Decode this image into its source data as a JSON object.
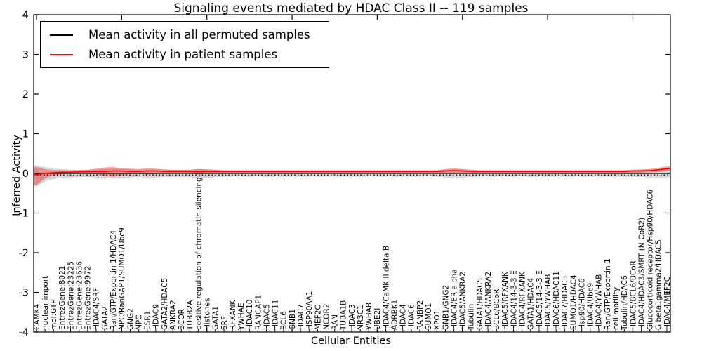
{
  "chart_data": {
    "type": "line",
    "title": "Signaling events mediated by HDAC Class II -- 119 samples",
    "xlabel": "Cellular Entities",
    "ylabel": "Inferred Activity",
    "ylim": [
      -4,
      4
    ],
    "yticks": [
      -4,
      -3,
      -2,
      -1,
      0,
      1,
      2,
      3,
      4
    ],
    "grid": false,
    "legend_position": "upper left",
    "zero_line_style": "dotted",
    "series": [
      {
        "name": "Mean activity in all permuted samples",
        "color": "#000000",
        "band_color": "rgba(120,120,120,0.30)"
      },
      {
        "name": "Mean activity in patient samples",
        "color": "#ff0000",
        "band_color": "rgba(255,0,0,0.35)"
      }
    ],
    "categories": [
      "CAMK4",
      "nuclear import",
      "mol:GTP",
      "EntrezGene:8021",
      "EntrezGene:23225",
      "EntrezGene:23636",
      "EntrezGene:9972",
      "HDAC4/SRF",
      "GATA2",
      "Ran/GTP/Exportin 1/HDAC4",
      "NPC/RanGAP1/SUMO1/Ubc9",
      "GNG2",
      "NPC",
      "ESR1",
      "HDAC9",
      "GATA2/HDAC5",
      "ANKRA2",
      "BCOR",
      "TUBB2A",
      "positive regulation of chromatin silencing",
      "Histones",
      "GATA1",
      "SRF",
      "RFXANK",
      "YWHAE",
      "HDAC10",
      "RANGAP1",
      "HDAC5",
      "HDAC11",
      "BCL6",
      "GNB1",
      "HDAC7",
      "HSP90AA1",
      "MEF2C",
      "NCOR2",
      "RAN",
      "TUBA1B",
      "HDAC3",
      "NR3C1",
      "YWHAB",
      "UBE2I",
      "HDAC4/CaMK II delta B",
      "ADRBK1",
      "HDAC4",
      "HDAC6",
      "RANBP2",
      "SUMO1",
      "XPO1",
      "GNB1/GNG2",
      "HDAC4/ER alpha",
      "HDAC5/ANKRA2",
      "Tubulin",
      "GATA1/HDAC5",
      "HDAC4/ANKRA2",
      "BCL6/BCoR",
      "HDAC5/RFXANK",
      "HDAC4/14-3-3 E",
      "HDAC4/RFXANK",
      "GATA1/HDAC4",
      "HDAC5/14-3-3 E",
      "HDAC5/YWHAB",
      "HDAC6/HDAC11",
      "HDAC7/HDAC3",
      "SUMO1/HDAC4",
      "Hsp90/HDAC6",
      "HDAC4/Ubc9",
      "HDAC4/YWHAB",
      "Ran/GTP/Exportin 1",
      "cell motility",
      "Tubulin/HDAC6",
      "HDAC5/BCL6/BCoR",
      "HDAC4/HDAC3/SMRT (N-CoR2)",
      "Glucocorticoid receptor/Hsp90/HDAC6",
      "G beta1gamma2/HDAC5",
      "HDAC4/MEF2C"
    ],
    "patient_mean": [
      -0.03,
      0.0,
      0.02,
      0.03,
      0.03,
      0.04,
      0.04,
      0.05,
      0.05,
      0.06,
      0.06,
      0.05,
      0.05,
      0.06,
      0.06,
      0.05,
      0.05,
      0.05,
      0.05,
      0.04,
      0.05,
      0.05,
      0.05,
      0.05,
      0.05,
      0.05,
      0.05,
      0.05,
      0.05,
      0.05,
      0.05,
      0.05,
      0.05,
      0.05,
      0.05,
      0.05,
      0.05,
      0.05,
      0.05,
      0.05,
      0.05,
      0.05,
      0.05,
      0.05,
      0.05,
      0.05,
      0.05,
      0.05,
      0.06,
      0.07,
      0.06,
      0.05,
      0.05,
      0.05,
      0.05,
      0.05,
      0.05,
      0.05,
      0.05,
      0.05,
      0.05,
      0.05,
      0.05,
      0.05,
      0.05,
      0.05,
      0.05,
      0.05,
      0.05,
      0.05,
      0.06,
      0.06,
      0.07,
      0.09,
      0.12
    ],
    "patient_upper": [
      0.16,
      0.1,
      0.08,
      0.08,
      0.08,
      0.08,
      0.09,
      0.12,
      0.15,
      0.16,
      0.13,
      0.12,
      0.11,
      0.13,
      0.12,
      0.1,
      0.09,
      0.09,
      0.09,
      0.11,
      0.1,
      0.09,
      0.08,
      0.08,
      0.08,
      0.08,
      0.08,
      0.08,
      0.08,
      0.08,
      0.08,
      0.08,
      0.08,
      0.08,
      0.08,
      0.08,
      0.08,
      0.08,
      0.08,
      0.08,
      0.08,
      0.08,
      0.08,
      0.08,
      0.08,
      0.08,
      0.08,
      0.08,
      0.11,
      0.13,
      0.11,
      0.09,
      0.08,
      0.08,
      0.08,
      0.08,
      0.08,
      0.08,
      0.08,
      0.08,
      0.08,
      0.08,
      0.08,
      0.08,
      0.08,
      0.08,
      0.08,
      0.08,
      0.08,
      0.08,
      0.09,
      0.1,
      0.11,
      0.14,
      0.18
    ],
    "patient_lower": [
      -0.3,
      -0.12,
      -0.05,
      -0.02,
      -0.01,
      -0.01,
      -0.01,
      -0.02,
      -0.06,
      -0.08,
      -0.05,
      -0.02,
      -0.01,
      -0.03,
      -0.02,
      0.0,
      0.0,
      0.01,
      0.01,
      -0.03,
      0.0,
      0.01,
      0.02,
      0.02,
      0.02,
      0.02,
      0.02,
      0.02,
      0.02,
      0.02,
      0.02,
      0.02,
      0.02,
      0.02,
      0.02,
      0.02,
      0.02,
      0.02,
      0.02,
      0.02,
      0.02,
      0.02,
      0.02,
      0.02,
      0.02,
      0.02,
      0.02,
      0.02,
      0.0,
      -0.01,
      0.0,
      0.01,
      0.02,
      0.02,
      0.02,
      0.02,
      0.02,
      0.02,
      0.02,
      0.02,
      0.02,
      0.02,
      0.02,
      0.02,
      0.02,
      0.02,
      0.02,
      0.02,
      0.02,
      0.02,
      0.02,
      0.02,
      0.03,
      0.04,
      0.06
    ],
    "permuted_mean": [
      0,
      0,
      0,
      0,
      0,
      0,
      0,
      0,
      0,
      0,
      0,
      0,
      0,
      0,
      0,
      0,
      0,
      0,
      0,
      0,
      0,
      0,
      0,
      0,
      0,
      0,
      0,
      0,
      0,
      0,
      0,
      0,
      0,
      0,
      0,
      0,
      0,
      0,
      0,
      0,
      0,
      0,
      0,
      0,
      0,
      0,
      0,
      0,
      0,
      0,
      0,
      0,
      0,
      0,
      0,
      0,
      0,
      0,
      0,
      0,
      0,
      0,
      0,
      0,
      0,
      0,
      0,
      0,
      0,
      0,
      0,
      0,
      0,
      0,
      0
    ],
    "permuted_upper": [
      0.2,
      0.16,
      0.12,
      0.1,
      0.09,
      0.09,
      0.09,
      0.1,
      0.11,
      0.12,
      0.11,
      0.1,
      0.09,
      0.1,
      0.1,
      0.09,
      0.09,
      0.09,
      0.09,
      0.11,
      0.1,
      0.09,
      0.08,
      0.08,
      0.08,
      0.08,
      0.08,
      0.08,
      0.08,
      0.08,
      0.08,
      0.08,
      0.08,
      0.08,
      0.08,
      0.08,
      0.08,
      0.08,
      0.08,
      0.08,
      0.08,
      0.08,
      0.08,
      0.08,
      0.08,
      0.08,
      0.08,
      0.08,
      0.1,
      0.1,
      0.1,
      0.09,
      0.08,
      0.08,
      0.08,
      0.08,
      0.08,
      0.08,
      0.08,
      0.08,
      0.08,
      0.08,
      0.08,
      0.08,
      0.08,
      0.08,
      0.08,
      0.08,
      0.08,
      0.08,
      0.09,
      0.09,
      0.1,
      0.1,
      0.1
    ],
    "permuted_lower": [
      -0.33,
      -0.2,
      -0.14,
      -0.11,
      -0.1,
      -0.09,
      -0.09,
      -0.1,
      -0.11,
      -0.12,
      -0.11,
      -0.1,
      -0.09,
      -0.1,
      -0.1,
      -0.09,
      -0.09,
      -0.09,
      -0.09,
      -0.13,
      -0.12,
      -0.09,
      -0.08,
      -0.08,
      -0.08,
      -0.08,
      -0.08,
      -0.08,
      -0.08,
      -0.08,
      -0.08,
      -0.08,
      -0.08,
      -0.08,
      -0.08,
      -0.08,
      -0.08,
      -0.08,
      -0.08,
      -0.08,
      -0.08,
      -0.08,
      -0.08,
      -0.08,
      -0.08,
      -0.08,
      -0.08,
      -0.08,
      -0.1,
      -0.1,
      -0.1,
      -0.09,
      -0.08,
      -0.08,
      -0.08,
      -0.08,
      -0.08,
      -0.08,
      -0.08,
      -0.08,
      -0.08,
      -0.08,
      -0.08,
      -0.08,
      -0.08,
      -0.08,
      -0.08,
      -0.08,
      -0.08,
      -0.08,
      -0.09,
      -0.09,
      -0.1,
      -0.1,
      -0.1
    ]
  }
}
